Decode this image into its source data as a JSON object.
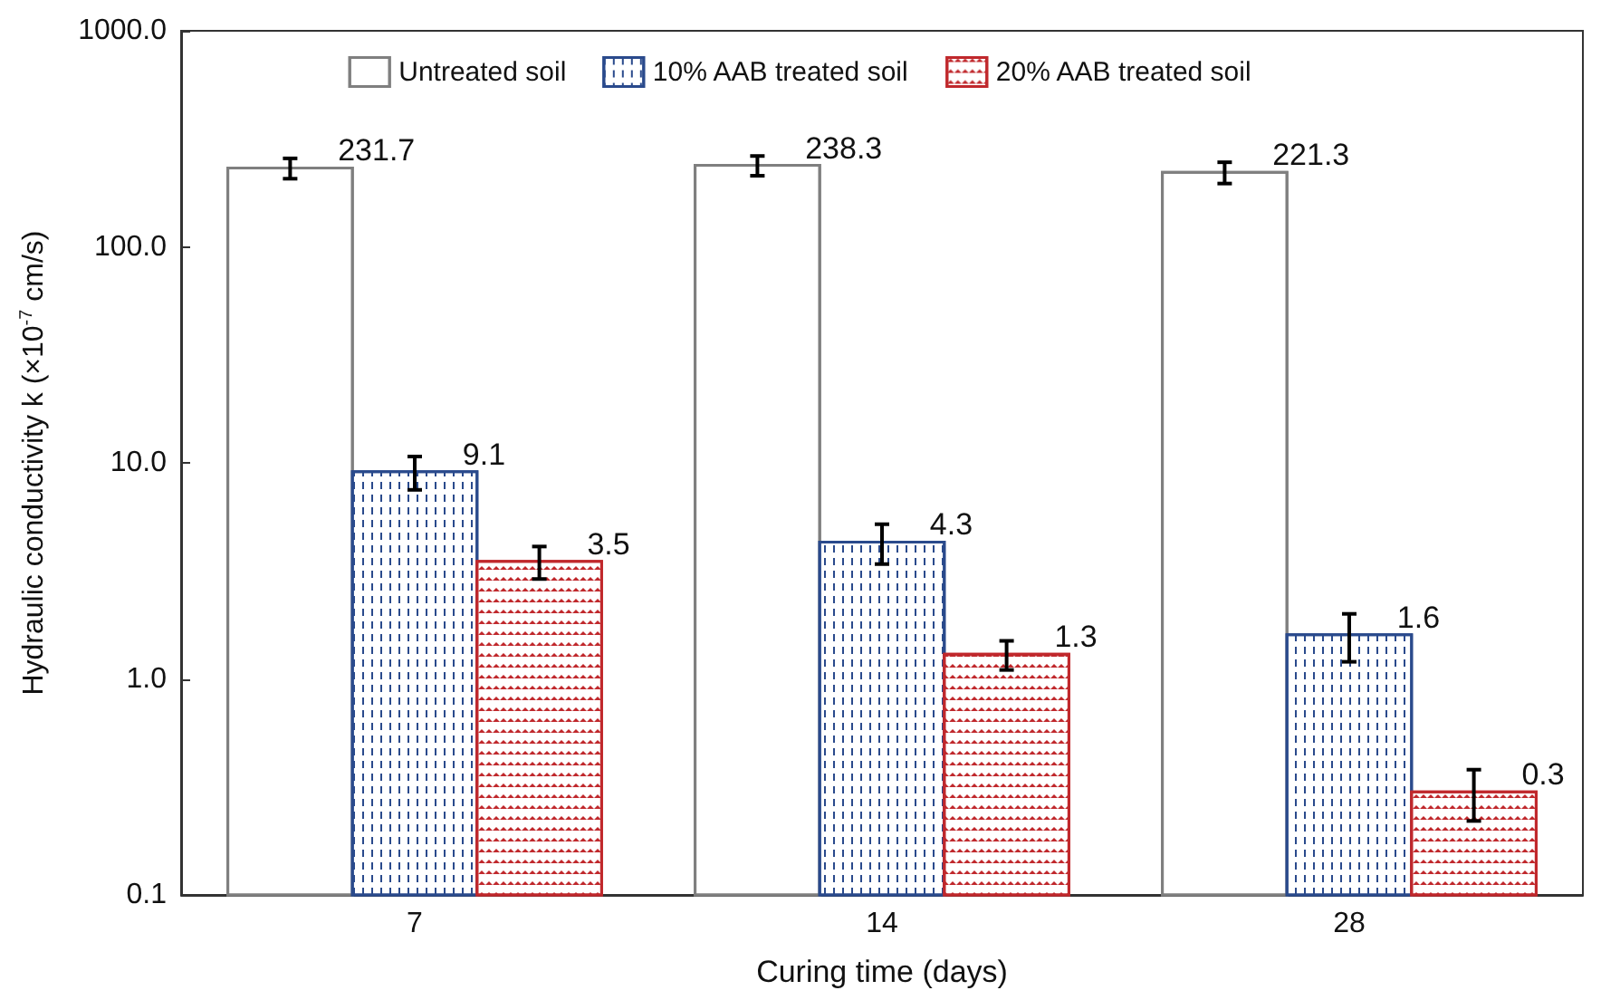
{
  "chart_data": {
    "type": "bar",
    "xlabel": "Curing time (days)",
    "ylabel": "Hydraulic conductivity k (×10$^{-7}$ cm/s)",
    "categories": [
      "7",
      "14",
      "28"
    ],
    "series": [
      {
        "name": "Untreated soil",
        "color": "#7f7f7f",
        "values": [
          231.7,
          238.3,
          221.3
        ],
        "errors": [
          25,
          25,
          25
        ]
      },
      {
        "name": "10% AAB treated soil",
        "color": "#2a4a8c",
        "values": [
          9.1,
          4.3,
          1.6
        ],
        "errors": [
          1.6,
          0.9,
          0.4
        ]
      },
      {
        "name": "20% AAB treated soil",
        "color": "#c0282c",
        "values": [
          3.5,
          1.3,
          0.3
        ],
        "errors": [
          0.6,
          0.2,
          0.08
        ]
      }
    ],
    "log": "y",
    "ylim": [
      0.1,
      1000
    ],
    "yticks": [
      {
        "value": 0.1,
        "label": "0.1"
      },
      {
        "value": 1,
        "label": "1.0"
      },
      {
        "value": 10,
        "label": "10.0"
      },
      {
        "value": 100,
        "label": "100.0"
      },
      {
        "value": 1000,
        "label": "1000.0"
      }
    ],
    "data_labels": true,
    "legend": "top",
    "grid": false
  }
}
